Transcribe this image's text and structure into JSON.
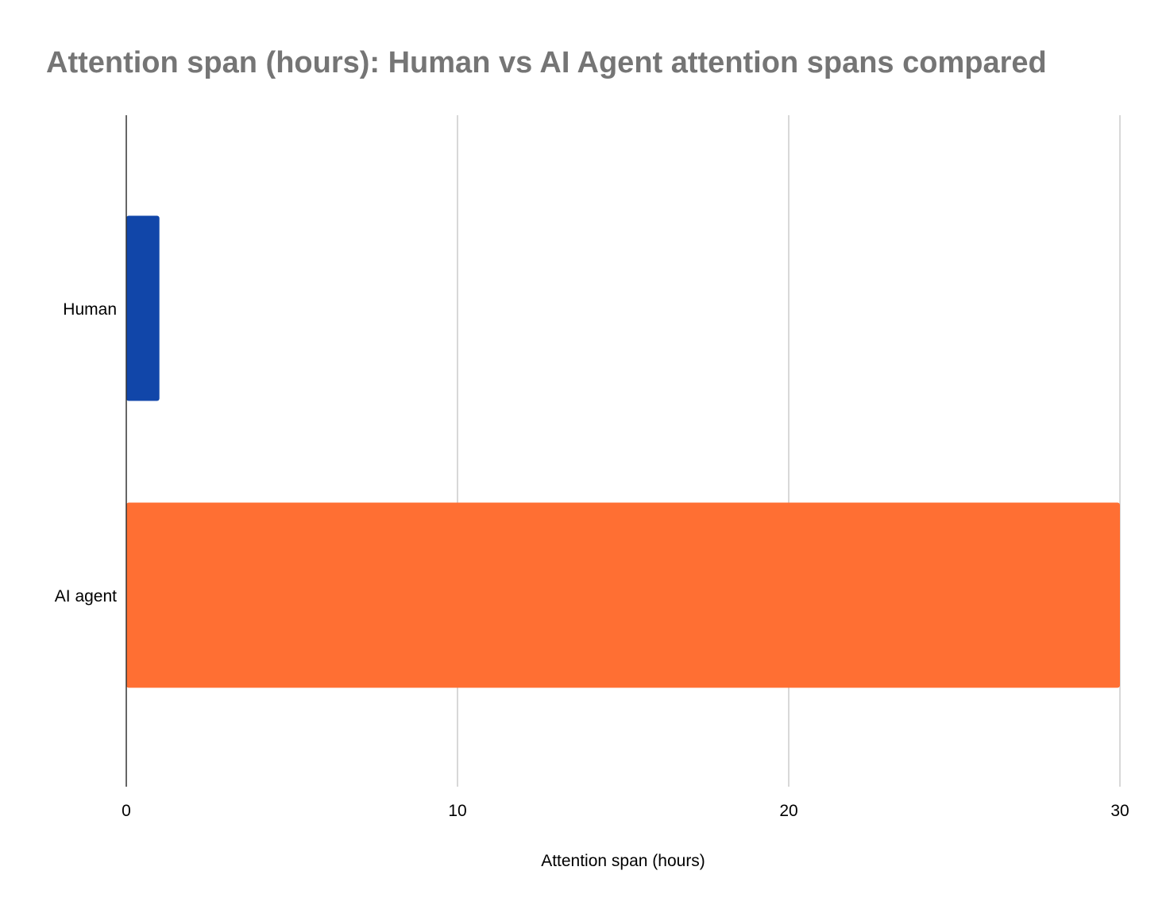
{
  "chart_data": {
    "type": "bar",
    "orientation": "horizontal",
    "title": "Attention span (hours): Human vs AI Agent attention spans compared",
    "xlabel": "Attention span (hours)",
    "ylabel": "",
    "categories": [
      "Human",
      "AI agent"
    ],
    "values": [
      1,
      30
    ],
    "bar_colors": [
      "#1146a9",
      "#ff6f33"
    ],
    "xlim": [
      0,
      30
    ],
    "xticks": [
      0,
      10,
      20,
      30
    ],
    "xtick_labels": [
      "0",
      "10",
      "20",
      "30"
    ],
    "grid": true,
    "legend": "none"
  }
}
